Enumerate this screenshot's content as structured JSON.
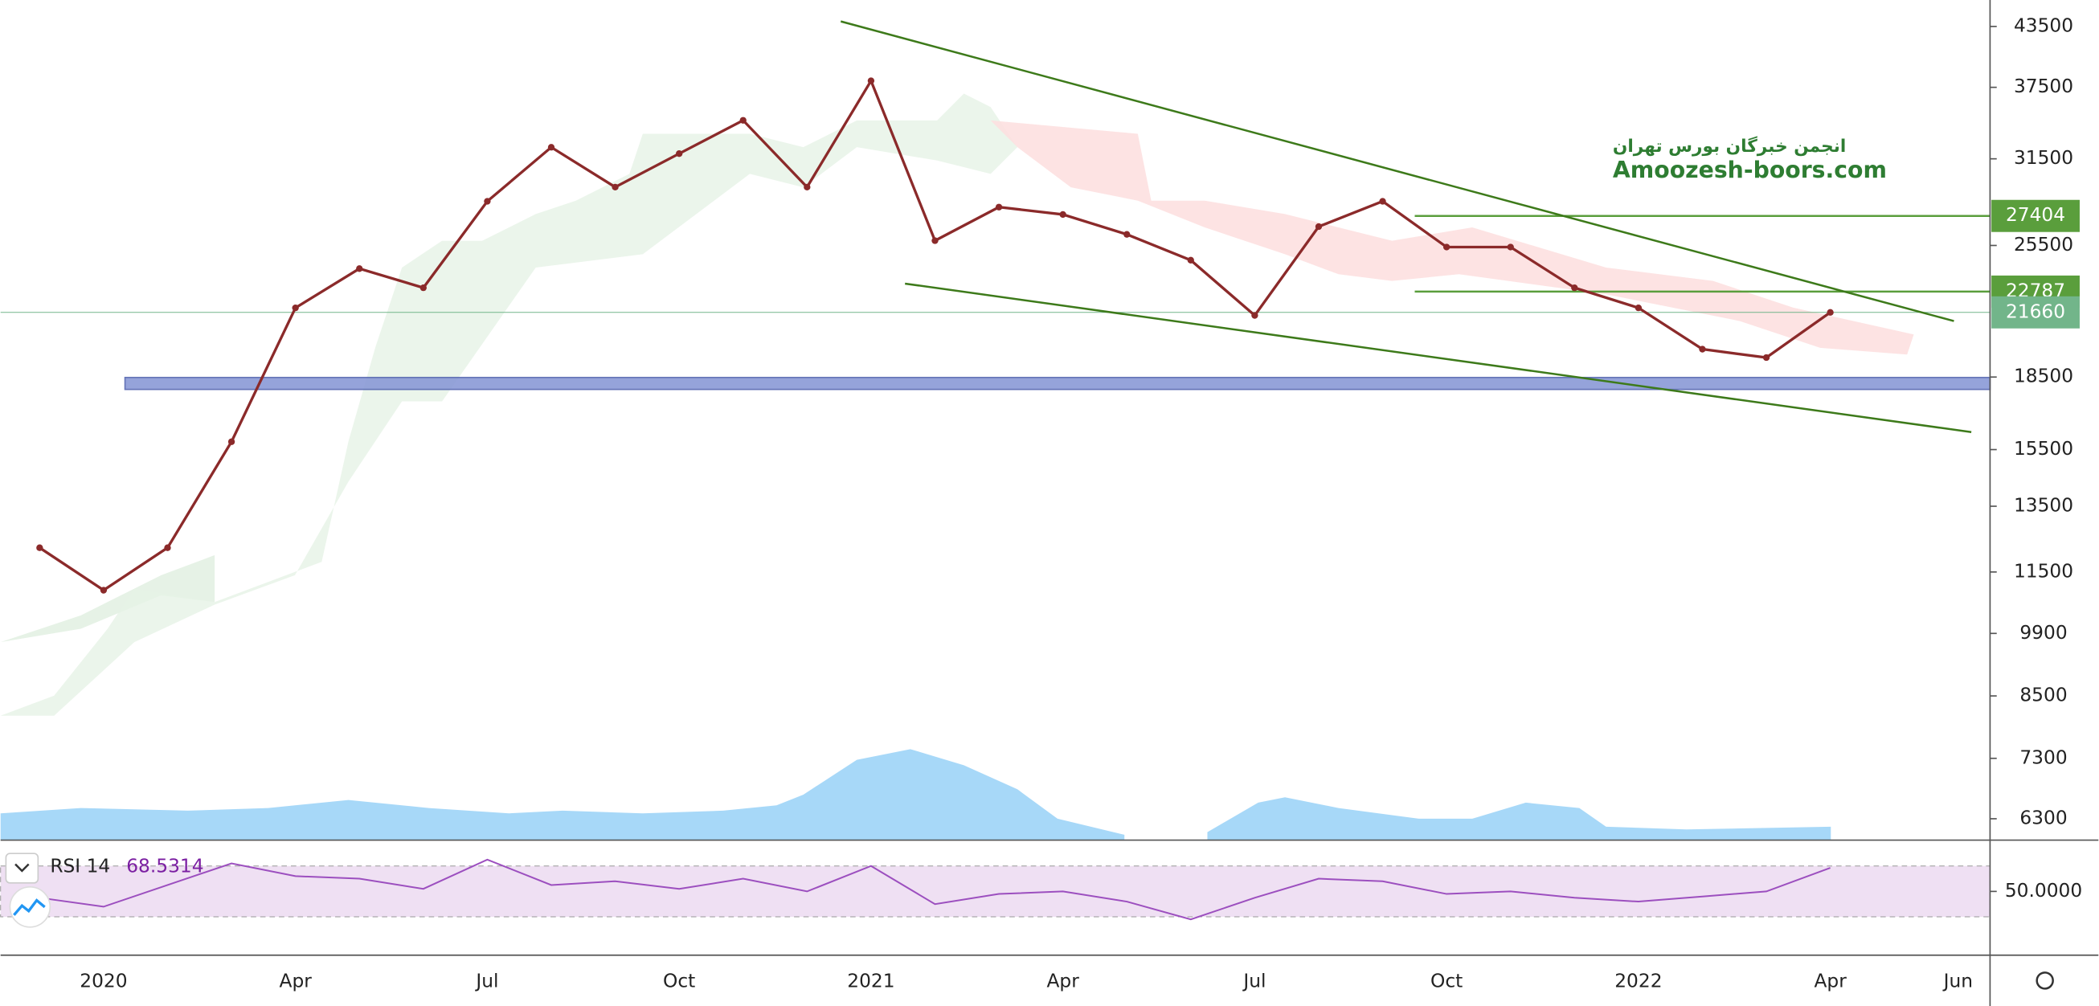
{
  "chart_data": {
    "type": "line",
    "categories": [
      null,
      "2020",
      null,
      null,
      "Apr",
      null,
      null,
      "Jul",
      null,
      null,
      "Oct",
      null,
      null,
      "2021",
      null,
      null,
      "Apr",
      null,
      null,
      "Jul",
      null,
      null,
      "Oct",
      null,
      null,
      "2022",
      null,
      null,
      "Apr",
      null,
      "Jun"
    ],
    "values": [
      12200,
      11000,
      12200,
      15800,
      21900,
      24100,
      23000,
      28400,
      32400,
      29400,
      31900,
      34600,
      29400,
      38100,
      25800,
      28000,
      27500,
      26200,
      24600,
      21500,
      26700,
      28400,
      25400,
      25400,
      23000,
      21900,
      19800,
      19400,
      21660,
      null,
      null
    ],
    "color": "#8b2a2a",
    "log_scale": true,
    "ylim": [
      5980,
      46400
    ],
    "yticks": [
      6300,
      7300,
      8500,
      9900,
      11500,
      13500,
      15500,
      18500,
      25500,
      31500,
      37500,
      43500
    ],
    "levels": [
      27404,
      22787,
      21660
    ],
    "level_colors": [
      "#5a9e3c",
      "#5a9e3c",
      "#72b58a"
    ],
    "zone": [
      17950,
      18480
    ],
    "zone_color": "#8a9ad6",
    "annotations": [
      "انجمن خبرگان بورس تهران",
      "Amoozesh-boors.com"
    ],
    "rsi": {
      "name": "RSI 14",
      "color": "#9c4fbf",
      "values": [
        45,
        38,
        55,
        72,
        62,
        60,
        52,
        75,
        55,
        58,
        52,
        60,
        50,
        70,
        40,
        48,
        50,
        42,
        28,
        45,
        60,
        58,
        48,
        50,
        45,
        42,
        46,
        50,
        68.5314,
        null,
        null
      ],
      "ylim": [
        2,
        84
      ],
      "yticks": [
        {
          "value": 50,
          "label": "50.0000"
        }
      ],
      "band": [
        30,
        70
      ]
    }
  }
}
